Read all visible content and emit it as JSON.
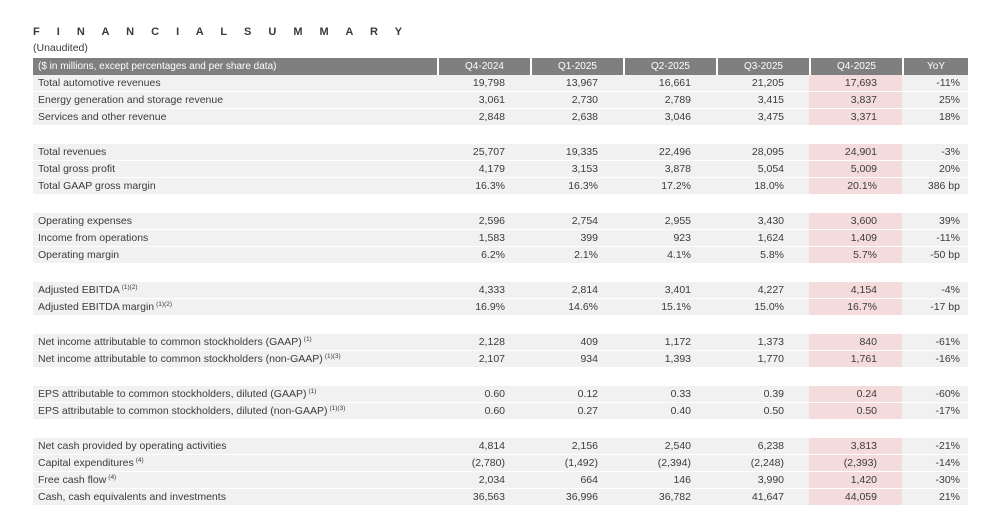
{
  "page": {
    "title": "F I N A N C I A L   S U M M A R Y",
    "subtitle": "(Unaudited)"
  },
  "colors": {
    "header_bg": "#7f7f7f",
    "header_text": "#ffffff",
    "row_bg": "#f1f1f1",
    "highlight_bg": "#f3dcdb",
    "text": "#3b3b3b"
  },
  "table": {
    "header_label": "($ in millions, except percentages and per share data)",
    "columns": [
      "Q4-2024",
      "Q1-2025",
      "Q2-2025",
      "Q3-2025",
      "Q4-2025",
      "YoY"
    ],
    "highlighted_column": "Q4-2025",
    "groups": [
      {
        "rows": [
          {
            "label": "Total automotive revenues",
            "sup": "",
            "values": [
              "19,798",
              "13,967",
              "16,661",
              "21,205",
              "17,693",
              "-11%"
            ]
          },
          {
            "label": "Energy generation and storage revenue",
            "sup": "",
            "values": [
              "3,061",
              "2,730",
              "2,789",
              "3,415",
              "3,837",
              "25%"
            ]
          },
          {
            "label": "Services and other revenue",
            "sup": "",
            "values": [
              "2,848",
              "2,638",
              "3,046",
              "3,475",
              "3,371",
              "18%"
            ]
          }
        ]
      },
      {
        "rows": [
          {
            "label": "Total revenues",
            "sup": "",
            "values": [
              "25,707",
              "19,335",
              "22,496",
              "28,095",
              "24,901",
              "-3%"
            ]
          },
          {
            "label": "Total gross profit",
            "sup": "",
            "values": [
              "4,179",
              "3,153",
              "3,878",
              "5,054",
              "5,009",
              "20%"
            ]
          },
          {
            "label": "Total GAAP gross margin",
            "sup": "",
            "values": [
              "16.3%",
              "16.3%",
              "17.2%",
              "18.0%",
              "20.1%",
              "386 bp"
            ]
          }
        ]
      },
      {
        "rows": [
          {
            "label": "Operating expenses",
            "sup": "",
            "values": [
              "2,596",
              "2,754",
              "2,955",
              "3,430",
              "3,600",
              "39%"
            ]
          },
          {
            "label": "Income from operations",
            "sup": "",
            "values": [
              "1,583",
              "399",
              "923",
              "1,624",
              "1,409",
              "-11%"
            ]
          },
          {
            "label": "Operating margin",
            "sup": "",
            "values": [
              "6.2%",
              "2.1%",
              "4.1%",
              "5.8%",
              "5.7%",
              "-50 bp"
            ]
          }
        ]
      },
      {
        "rows": [
          {
            "label": "Adjusted EBITDA",
            "sup": "(1)(2)",
            "values": [
              "4,333",
              "2,814",
              "3,401",
              "4,227",
              "4,154",
              "-4%"
            ]
          },
          {
            "label": "Adjusted EBITDA margin",
            "sup": "(1)(2)",
            "values": [
              "16.9%",
              "14.6%",
              "15.1%",
              "15.0%",
              "16.7%",
              "-17 bp"
            ]
          }
        ]
      },
      {
        "rows": [
          {
            "label": "Net income attributable to common stockholders (GAAP)",
            "sup": "(1)",
            "values": [
              "2,128",
              "409",
              "1,172",
              "1,373",
              "840",
              "-61%"
            ]
          },
          {
            "label": "Net income attributable to common stockholders (non-GAAP)",
            "sup": "(1)(3)",
            "values": [
              "2,107",
              "934",
              "1,393",
              "1,770",
              "1,761",
              "-16%"
            ]
          }
        ]
      },
      {
        "rows": [
          {
            "label": "EPS attributable to common stockholders, diluted (GAAP)",
            "sup": "(1)",
            "values": [
              "0.60",
              "0.12",
              "0.33",
              "0.39",
              "0.24",
              "-60%"
            ]
          },
          {
            "label": "EPS attributable to common stockholders, diluted (non-GAAP)",
            "sup": "(1)(3)",
            "values": [
              "0.60",
              "0.27",
              "0.40",
              "0.50",
              "0.50",
              "-17%"
            ]
          }
        ]
      },
      {
        "rows": [
          {
            "label": "Net cash provided by operating activities",
            "sup": "",
            "values": [
              "4,814",
              "2,156",
              "2,540",
              "6,238",
              "3,813",
              "-21%"
            ]
          },
          {
            "label": "Capital expenditures",
            "sup": "(4)",
            "values": [
              "(2,780)",
              "(1,492)",
              "(2,394)",
              "(2,248)",
              "(2,393)",
              "-14%"
            ]
          },
          {
            "label": "Free cash flow",
            "sup": "(4)",
            "values": [
              "2,034",
              "664",
              "146",
              "3,990",
              "1,420",
              "-30%"
            ]
          },
          {
            "label": "Cash, cash equivalents and investments",
            "sup": "",
            "values": [
              "36,563",
              "36,996",
              "36,782",
              "41,647",
              "44,059",
              "21%"
            ]
          }
        ]
      }
    ]
  }
}
